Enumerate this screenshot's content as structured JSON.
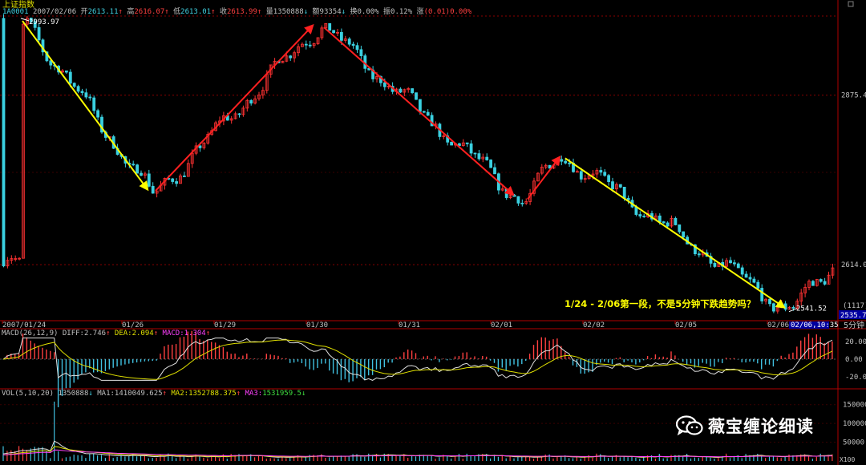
{
  "header": {
    "title": "上证指数",
    "code": "1A0001",
    "date": "2007/02/06",
    "open_label": "开",
    "open": "2613.11",
    "high_label": "高",
    "high": "2616.07",
    "low_label": "低",
    "low": "2613.01",
    "close_label": "收",
    "close": "2613.99",
    "volume_label": "量",
    "volume": "1350888",
    "amount_label": "额",
    "amount": "93354",
    "turnover_label": "换",
    "turnover": "0.00%",
    "amplitude_label": "振",
    "amplitude": "0.12%",
    "change_label": "涨",
    "change": "(0.01)0.00%"
  },
  "price_axis": {
    "ticks": [
      "2875.4",
      "2614.0"
    ],
    "marker_value": "2535.70",
    "marker_top": "(1117)",
    "period": "5分钟"
  },
  "time_axis": {
    "dates": [
      "2007/01/24",
      "01/26",
      "01/29",
      "01/30",
      "01/31",
      "02/01",
      "02/02",
      "02/05",
      "02/06"
    ],
    "cursor": "02/06,10:35"
  },
  "annotation": {
    "high_label": "2993.97",
    "low_label": "2541.52",
    "note": "1/24 - 2/06第一段，不是5分钟下跌趋势吗？"
  },
  "macd": {
    "label": "MACD(26,12,9)",
    "diff_label": "DIFF:",
    "diff": "2.746",
    "dea_label": "DEA:",
    "dea": "2.094",
    "macd_label": "MACD:",
    "macd": "1.304",
    "ticks": [
      "20.00",
      "0.00",
      "-20.00"
    ]
  },
  "volume": {
    "label": "VOL(5,10,20)",
    "value": "1350888",
    "ma1_label": "MA1:",
    "ma1": "1410049.625",
    "ma2_label": "MA2:",
    "ma2": "1352788.375",
    "ma3_label": "MA3:",
    "ma3": "1531959.5",
    "ticks": [
      "150000",
      "100000",
      "50000"
    ],
    "unit": "X100"
  },
  "watermark": {
    "icon": "wechat-icon",
    "text": "薇宝缠论细读"
  },
  "colors": {
    "up": "#ff3232",
    "down": "#3ad0e0",
    "yellow_arrow": "#ffff00",
    "red_arrow": "#ff2020",
    "grid_red": "#8a0000"
  },
  "chart_data": {
    "type": "candlestick",
    "interval": "5分钟",
    "ylim": [
      2530,
      3000
    ],
    "pivots": [
      {
        "date": "01/24",
        "value": 2993.97
      },
      {
        "date": "01/26",
        "value": 2720
      },
      {
        "date": "01/30",
        "value": 2985
      },
      {
        "date": "02/01",
        "value": 2710
      },
      {
        "date": "02/02",
        "value": 2785
      },
      {
        "date": "02/06",
        "value": 2541.52
      }
    ],
    "last_close": 2613.99
  }
}
